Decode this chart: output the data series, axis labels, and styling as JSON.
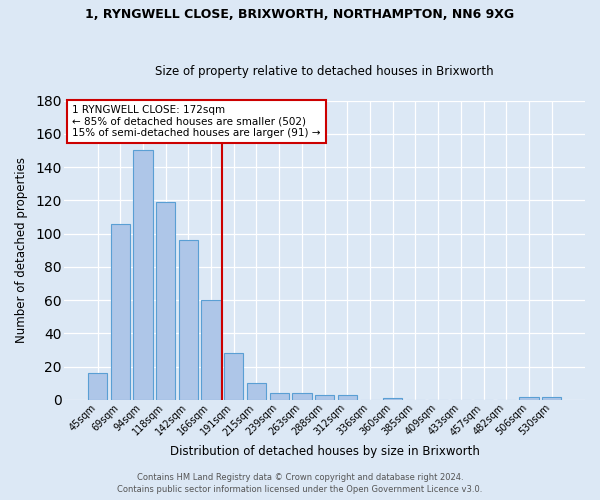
{
  "title1": "1, RYNGWELL CLOSE, BRIXWORTH, NORTHAMPTON, NN6 9XG",
  "title2": "Size of property relative to detached houses in Brixworth",
  "xlabel": "Distribution of detached houses by size in Brixworth",
  "ylabel": "Number of detached properties",
  "bar_labels": [
    "45sqm",
    "69sqm",
    "94sqm",
    "118sqm",
    "142sqm",
    "166sqm",
    "191sqm",
    "215sqm",
    "239sqm",
    "263sqm",
    "288sqm",
    "312sqm",
    "336sqm",
    "360sqm",
    "385sqm",
    "409sqm",
    "433sqm",
    "457sqm",
    "482sqm",
    "506sqm",
    "530sqm"
  ],
  "bar_values": [
    16,
    106,
    150,
    119,
    96,
    60,
    28,
    10,
    4,
    4,
    3,
    3,
    0,
    1,
    0,
    0,
    0,
    0,
    0,
    2,
    2
  ],
  "bar_color": "#aec6e8",
  "bar_edge_color": "#5a9fd4",
  "vline_x_index": 5,
  "vline_color": "#cc0000",
  "annotation_text": "1 RYNGWELL CLOSE: 172sqm\n← 85% of detached houses are smaller (502)\n15% of semi-detached houses are larger (91) →",
  "annotation_box_color": "#ffffff",
  "annotation_box_edge": "#cc0000",
  "ylim": [
    0,
    180
  ],
  "yticks": [
    0,
    20,
    40,
    60,
    80,
    100,
    120,
    140,
    160,
    180
  ],
  "footer1": "Contains HM Land Registry data © Crown copyright and database right 2024.",
  "footer2": "Contains public sector information licensed under the Open Government Licence v3.0.",
  "bg_color": "#dce8f5",
  "plot_bg_color": "#dce8f5",
  "title1_fontsize": 9.0,
  "title2_fontsize": 8.5,
  "xlabel_fontsize": 8.5,
  "ylabel_fontsize": 8.5,
  "tick_fontsize": 7.0,
  "annotation_fontsize": 7.5,
  "footer_fontsize": 6.0
}
